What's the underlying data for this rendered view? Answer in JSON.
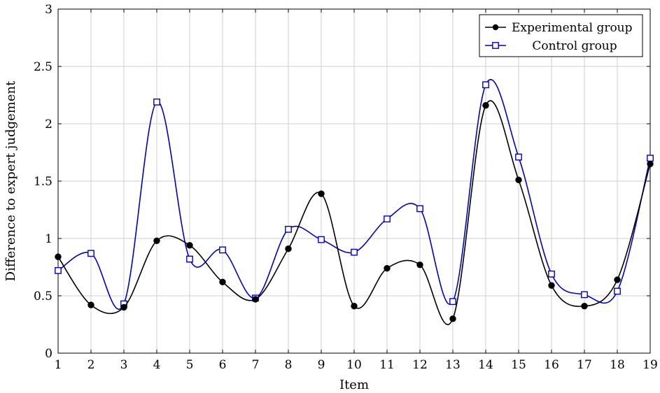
{
  "chart_data": {
    "type": "line",
    "title": "",
    "xlabel": "Item",
    "ylabel": "Difference to expert judgement",
    "x": [
      1,
      2,
      3,
      4,
      5,
      6,
      7,
      8,
      9,
      10,
      11,
      12,
      13,
      14,
      15,
      16,
      17,
      18,
      19
    ],
    "xlim": [
      1,
      19
    ],
    "ylim": [
      0,
      3
    ],
    "yticks": [
      0,
      0.5,
      1,
      1.5,
      2,
      2.5,
      3
    ],
    "ytick_labels": [
      "0",
      "0.5",
      "1",
      "1.5",
      "2",
      "2.5",
      "3"
    ],
    "grid": true,
    "legend_position": "top-right",
    "smooth": true,
    "series": [
      {
        "name": "Experimental group",
        "color": "#000000",
        "marker": "filled-circle",
        "values": [
          0.84,
          0.42,
          0.4,
          0.98,
          0.94,
          0.62,
          0.47,
          0.91,
          1.39,
          0.41,
          0.74,
          0.77,
          0.3,
          2.16,
          1.51,
          0.59,
          0.41,
          0.64,
          1.65
        ]
      },
      {
        "name": "Control group",
        "color": "#0000cc",
        "marker": "open-square",
        "values": [
          0.72,
          0.87,
          0.43,
          2.19,
          0.82,
          0.9,
          0.48,
          1.08,
          0.99,
          0.88,
          1.17,
          1.26,
          0.45,
          2.34,
          1.71,
          0.69,
          0.51,
          0.54,
          1.7
        ]
      }
    ]
  }
}
